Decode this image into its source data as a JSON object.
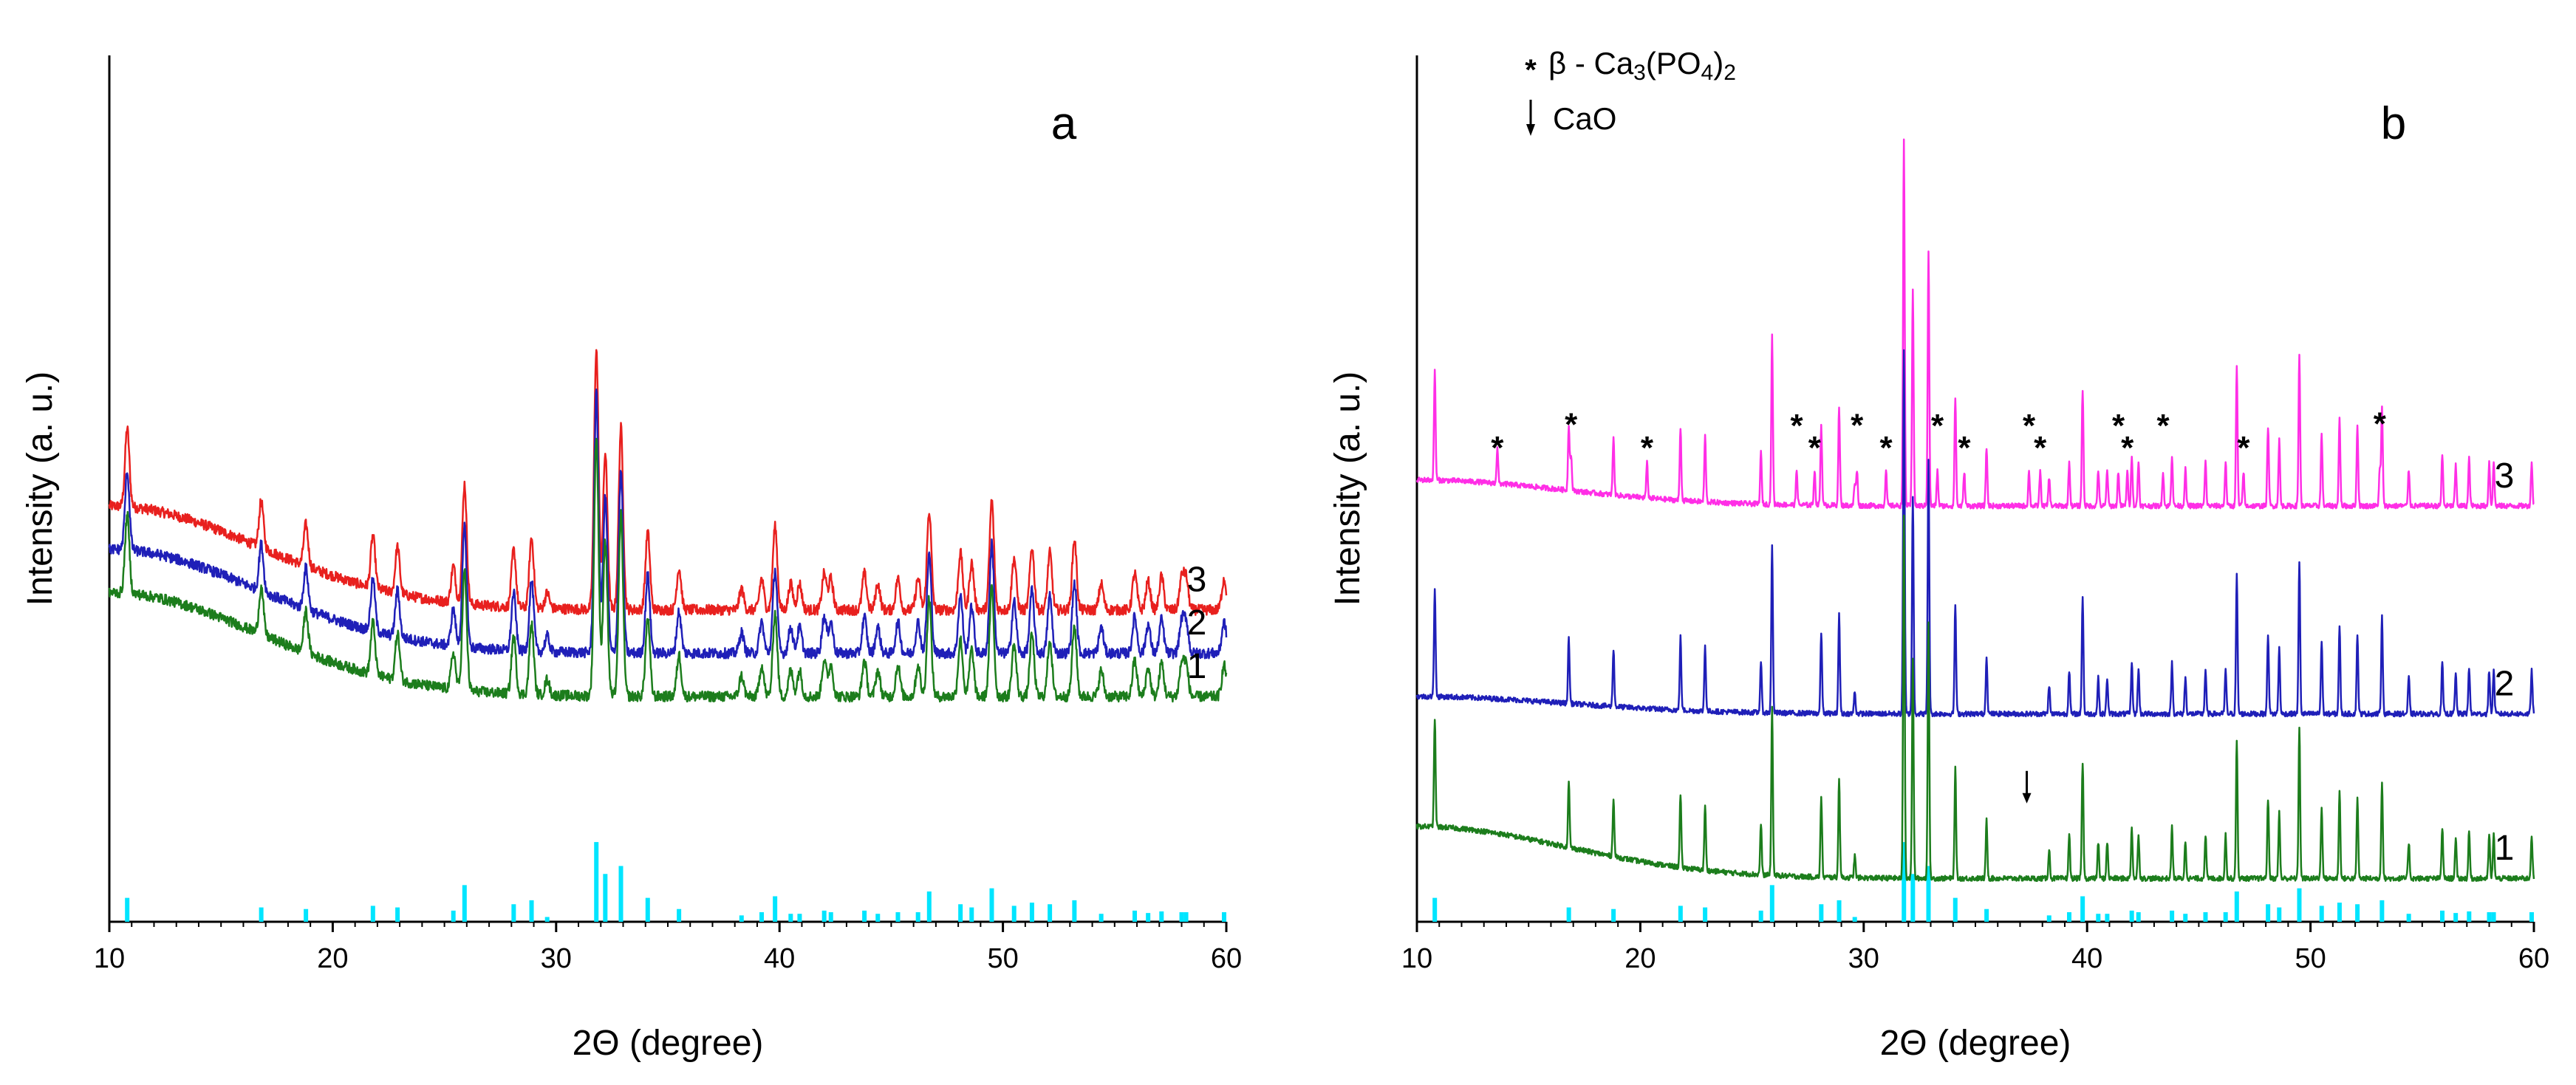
{
  "chart_data": [
    {
      "type": "line",
      "panel_label": "a",
      "xlabel": "2Θ (degree)",
      "ylabel": "Intensity (a. u.)",
      "xlim": [
        10,
        60
      ],
      "xticks": [
        10,
        20,
        30,
        40,
        50,
        60
      ],
      "legend": [],
      "series": [
        {
          "name": "3",
          "color": "#e8201e",
          "baseline": 0.36,
          "broad": true,
          "amorphous": 0.12
        },
        {
          "name": "2",
          "color": "#1f1fb8",
          "baseline": 0.31,
          "broad": true,
          "amorphous": 0.12
        },
        {
          "name": "1",
          "color": "#1c7d1c",
          "baseline": 0.26,
          "broad": true,
          "amorphous": 0.12
        }
      ],
      "series_labels": [
        "3",
        "2",
        "1"
      ],
      "reference_color": "#00e5ff",
      "reference_bars": [
        [
          10.8,
          0.3
        ],
        [
          16.8,
          0.18
        ],
        [
          18.8,
          0.16
        ],
        [
          21.8,
          0.2
        ],
        [
          22.9,
          0.18
        ],
        [
          25.4,
          0.14
        ],
        [
          25.9,
          0.46
        ],
        [
          28.1,
          0.22
        ],
        [
          28.9,
          0.27
        ],
        [
          29.6,
          0.06
        ],
        [
          31.8,
          1.0
        ],
        [
          32.2,
          0.6
        ],
        [
          32.9,
          0.7
        ],
        [
          34.1,
          0.3
        ],
        [
          35.5,
          0.16
        ],
        [
          38.3,
          0.08
        ],
        [
          39.2,
          0.12
        ],
        [
          39.8,
          0.32
        ],
        [
          40.5,
          0.1
        ],
        [
          40.9,
          0.1
        ],
        [
          42.0,
          0.14
        ],
        [
          42.3,
          0.12
        ],
        [
          43.8,
          0.14
        ],
        [
          44.4,
          0.1
        ],
        [
          45.3,
          0.12
        ],
        [
          46.2,
          0.12
        ],
        [
          46.7,
          0.38
        ],
        [
          48.1,
          0.22
        ],
        [
          48.6,
          0.18
        ],
        [
          49.5,
          0.42
        ],
        [
          50.5,
          0.2
        ],
        [
          51.3,
          0.24
        ],
        [
          52.1,
          0.22
        ],
        [
          53.2,
          0.27
        ],
        [
          54.4,
          0.1
        ],
        [
          55.9,
          0.14
        ],
        [
          56.5,
          0.11
        ],
        [
          57.1,
          0.13
        ],
        [
          58.0,
          0.12
        ],
        [
          58.2,
          0.12
        ],
        [
          59.9,
          0.12
        ]
      ]
    },
    {
      "type": "line",
      "panel_label": "b",
      "xlabel": "2Θ (degree)",
      "ylabel": "Intensity (a. u.)",
      "xlim": [
        10,
        60
      ],
      "xticks": [
        10,
        20,
        30,
        40,
        50,
        60
      ],
      "legend": [
        {
          "marker": "*",
          "text": "β - Ca3(PO4)2"
        },
        {
          "marker": "arrow",
          "text": "CaO"
        }
      ],
      "series": [
        {
          "name": "3",
          "color": "#ff2ee6",
          "baseline": 0.48,
          "broad": false,
          "amorphous": 0.03,
          "tcp_peaks": true
        },
        {
          "name": "2",
          "color": "#1f1fb8",
          "baseline": 0.24,
          "broad": false,
          "amorphous": 0.02
        },
        {
          "name": "1",
          "color": "#1c7d1c",
          "baseline": 0.05,
          "broad": false,
          "amorphous": 0.06
        }
      ],
      "series_labels": [
        "3",
        "2",
        "1"
      ],
      "tcp_marker_positions": [
        13.6,
        16.9,
        20.3,
        27.0,
        27.8,
        29.7,
        31.0,
        33.3,
        34.5,
        37.4,
        37.9,
        41.4,
        41.8,
        43.4,
        47.0,
        53.1
      ],
      "cao_marker_position": 37.3,
      "reference_color": "#00e5ff",
      "reference_bars": [
        [
          10.8,
          0.3
        ],
        [
          16.8,
          0.18
        ],
        [
          18.8,
          0.16
        ],
        [
          21.8,
          0.2
        ],
        [
          22.9,
          0.18
        ],
        [
          25.4,
          0.14
        ],
        [
          25.9,
          0.46
        ],
        [
          28.1,
          0.22
        ],
        [
          28.9,
          0.27
        ],
        [
          29.6,
          0.06
        ],
        [
          31.8,
          1.0
        ],
        [
          32.2,
          0.6
        ],
        [
          32.9,
          0.7
        ],
        [
          34.1,
          0.3
        ],
        [
          35.5,
          0.16
        ],
        [
          38.3,
          0.08
        ],
        [
          39.2,
          0.12
        ],
        [
          39.8,
          0.32
        ],
        [
          40.5,
          0.1
        ],
        [
          40.9,
          0.1
        ],
        [
          42.0,
          0.14
        ],
        [
          42.3,
          0.12
        ],
        [
          43.8,
          0.14
        ],
        [
          44.4,
          0.1
        ],
        [
          45.3,
          0.12
        ],
        [
          46.2,
          0.12
        ],
        [
          46.7,
          0.38
        ],
        [
          48.1,
          0.22
        ],
        [
          48.6,
          0.18
        ],
        [
          49.5,
          0.42
        ],
        [
          50.5,
          0.2
        ],
        [
          51.3,
          0.24
        ],
        [
          52.1,
          0.22
        ],
        [
          53.2,
          0.27
        ],
        [
          54.4,
          0.1
        ],
        [
          55.9,
          0.14
        ],
        [
          56.5,
          0.11
        ],
        [
          57.1,
          0.13
        ],
        [
          58.0,
          0.12
        ],
        [
          58.2,
          0.12
        ],
        [
          59.9,
          0.12
        ]
      ]
    }
  ]
}
